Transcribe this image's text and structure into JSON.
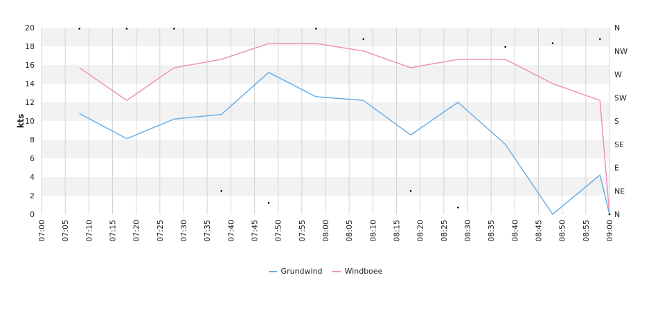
{
  "chart_data": {
    "type": "line",
    "ylabel": "kts",
    "ylim": [
      0,
      20
    ],
    "yticks": [
      "0",
      "2",
      "4",
      "6",
      "8",
      "10",
      "12",
      "14",
      "16",
      "18",
      "20"
    ],
    "xlim_minutes": [
      0,
      120
    ],
    "xticks": [
      "07:00",
      "07:05",
      "07:10",
      "07:15",
      "07:20",
      "07:25",
      "07:30",
      "07:35",
      "07:40",
      "07:45",
      "07:50",
      "07:55",
      "08:00",
      "08:05",
      "08:10",
      "08:15",
      "08:20",
      "08:25",
      "08:30",
      "08:35",
      "08:40",
      "08:45",
      "08:50",
      "08:55",
      "09:00"
    ],
    "x": [
      "07:08",
      "07:18",
      "07:28",
      "07:38",
      "07:48",
      "07:58",
      "08:08",
      "08:18",
      "08:28",
      "08:38",
      "08:48",
      "08:58",
      "09:00"
    ],
    "series": [
      {
        "name": "Grundwind",
        "color": "#6aaee8",
        "values": [
          10.8,
          8.1,
          10.2,
          10.7,
          15.2,
          12.6,
          12.2,
          8.5,
          12.0,
          7.5,
          0.0,
          4.2,
          0.0
        ]
      },
      {
        "name": "Windboee",
        "color": "#ef8fbd",
        "values": [
          15.7,
          12.2,
          15.7,
          16.6,
          18.3,
          18.3,
          17.5,
          15.7,
          16.6,
          16.6,
          14.0,
          12.2,
          0.0
        ]
      }
    ],
    "direction_axis": {
      "ticks": [
        "N",
        "NE",
        "E",
        "SE",
        "S",
        "SW",
        "W",
        "NW",
        "N"
      ],
      "x": [
        "07:08",
        "07:18",
        "07:28",
        "07:38",
        "07:48",
        "07:58",
        "08:08",
        "08:18",
        "08:28",
        "08:38",
        "08:48",
        "08:58",
        "09:00"
      ],
      "degrees": [
        358,
        358,
        358,
        45,
        22,
        358,
        338,
        45,
        13,
        323,
        330,
        338,
        0
      ]
    },
    "grid": true,
    "legend_position": "bottom-center"
  }
}
